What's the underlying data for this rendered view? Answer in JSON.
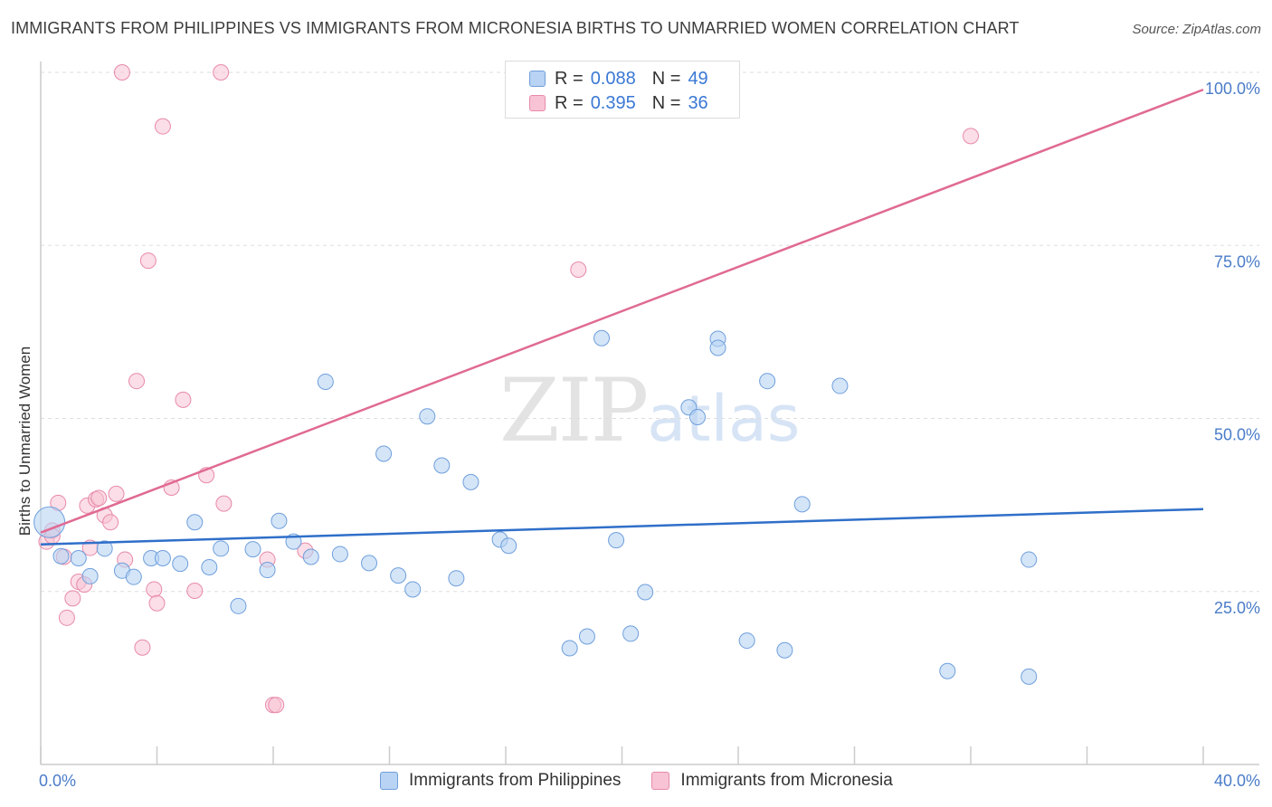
{
  "title": "IMMIGRANTS FROM PHILIPPINES VS IMMIGRANTS FROM MICRONESIA BIRTHS TO UNMARRIED WOMEN CORRELATION CHART",
  "source": "Source: ZipAtlas.com",
  "watermark": {
    "zip": "ZIP",
    "atlas": "atlas"
  },
  "legend": {
    "philippines": {
      "r_label": "R =",
      "r_value": "0.088",
      "n_label": "N =",
      "n_value": "49"
    },
    "micronesia": {
      "r_label": "R =",
      "r_value": "0.395",
      "n_label": "N =",
      "n_value": "36"
    }
  },
  "colors": {
    "philippines_fill": "#b8d3f3",
    "philippines_stroke": "#6f9fdc",
    "philippines_line": "#2f6fc9",
    "micronesia_fill": "#f8c3d4",
    "micronesia_stroke": "#e88aaa",
    "micronesia_line": "#e06a93",
    "grid": "#dddddd",
    "axis": "#cccccc"
  },
  "chart_data": {
    "type": "scatter",
    "title": "IMMIGRANTS FROM PHILIPPINES VS IMMIGRANTS FROM MICRONESIA BIRTHS TO UNMARRIED WOMEN CORRELATION CHART",
    "xlabel": "",
    "ylabel": "Births to Unmarried Women",
    "xlim": [
      0,
      40
    ],
    "ylim": [
      0,
      100
    ],
    "x_tick_labels": [
      "0.0%",
      "40.0%"
    ],
    "y_ticks": [
      25,
      50,
      75,
      100
    ],
    "y_tick_labels": [
      "25.0%",
      "50.0%",
      "75.0%",
      "100.0%"
    ],
    "grid": true,
    "legend_position": "bottom",
    "series": [
      {
        "name": "Immigrants from Philippines",
        "r": 0.088,
        "n": 49,
        "trend": {
          "x": [
            0,
            40
          ],
          "y": [
            31.8,
            36.9
          ]
        },
        "points": [
          {
            "x": 0.3,
            "y": 35.0,
            "size": "large"
          },
          {
            "x": 0.7,
            "y": 30.1
          },
          {
            "x": 1.3,
            "y": 29.8
          },
          {
            "x": 1.7,
            "y": 27.2
          },
          {
            "x": 2.2,
            "y": 31.2
          },
          {
            "x": 2.8,
            "y": 28.0
          },
          {
            "x": 3.2,
            "y": 27.1
          },
          {
            "x": 3.8,
            "y": 29.8
          },
          {
            "x": 4.2,
            "y": 29.8
          },
          {
            "x": 4.8,
            "y": 29.0
          },
          {
            "x": 5.3,
            "y": 35.0
          },
          {
            "x": 5.8,
            "y": 28.5
          },
          {
            "x": 6.2,
            "y": 31.2
          },
          {
            "x": 6.8,
            "y": 22.9
          },
          {
            "x": 7.3,
            "y": 31.1
          },
          {
            "x": 7.8,
            "y": 28.1
          },
          {
            "x": 8.2,
            "y": 35.2
          },
          {
            "x": 8.7,
            "y": 32.2
          },
          {
            "x": 9.3,
            "y": 30.0
          },
          {
            "x": 9.8,
            "y": 55.3
          },
          {
            "x": 10.3,
            "y": 30.4
          },
          {
            "x": 11.3,
            "y": 29.1
          },
          {
            "x": 11.8,
            "y": 44.9
          },
          {
            "x": 12.3,
            "y": 27.3
          },
          {
            "x": 12.8,
            "y": 25.3
          },
          {
            "x": 13.3,
            "y": 50.3
          },
          {
            "x": 13.8,
            "y": 43.2
          },
          {
            "x": 14.3,
            "y": 26.9
          },
          {
            "x": 14.8,
            "y": 40.8
          },
          {
            "x": 15.8,
            "y": 32.5
          },
          {
            "x": 16.1,
            "y": 31.6
          },
          {
            "x": 18.2,
            "y": 16.8
          },
          {
            "x": 18.8,
            "y": 18.5
          },
          {
            "x": 19.3,
            "y": 61.6
          },
          {
            "x": 19.8,
            "y": 32.4
          },
          {
            "x": 20.3,
            "y": 18.9
          },
          {
            "x": 20.8,
            "y": 24.9
          },
          {
            "x": 22.3,
            "y": 51.6
          },
          {
            "x": 22.6,
            "y": 50.2
          },
          {
            "x": 23.3,
            "y": 61.5
          },
          {
            "x": 23.3,
            "y": 60.2
          },
          {
            "x": 24.3,
            "y": 17.9
          },
          {
            "x": 25.0,
            "y": 55.4
          },
          {
            "x": 25.6,
            "y": 16.5
          },
          {
            "x": 26.2,
            "y": 37.6
          },
          {
            "x": 27.5,
            "y": 54.7
          },
          {
            "x": 31.2,
            "y": 13.5
          },
          {
            "x": 34.0,
            "y": 12.7
          },
          {
            "x": 34.0,
            "y": 29.6
          }
        ]
      },
      {
        "name": "Immigrants from Micronesia",
        "r": 0.395,
        "n": 36,
        "trend": {
          "x": [
            0,
            40
          ],
          "y": [
            33.5,
            97.5
          ]
        },
        "points": [
          {
            "x": 0.2,
            "y": 32.2
          },
          {
            "x": 0.4,
            "y": 33.8
          },
          {
            "x": 0.6,
            "y": 37.8
          },
          {
            "x": 0.8,
            "y": 30.0
          },
          {
            "x": 0.9,
            "y": 21.2
          },
          {
            "x": 1.1,
            "y": 24.0
          },
          {
            "x": 1.3,
            "y": 26.4
          },
          {
            "x": 1.5,
            "y": 26.0
          },
          {
            "x": 1.6,
            "y": 37.4
          },
          {
            "x": 1.7,
            "y": 31.3
          },
          {
            "x": 1.9,
            "y": 38.3
          },
          {
            "x": 2.0,
            "y": 38.5
          },
          {
            "x": 2.2,
            "y": 36.0
          },
          {
            "x": 2.4,
            "y": 35.0
          },
          {
            "x": 2.6,
            "y": 39.1
          },
          {
            "x": 2.8,
            "y": 100.0
          },
          {
            "x": 2.9,
            "y": 29.6
          },
          {
            "x": 3.3,
            "y": 55.4
          },
          {
            "x": 3.5,
            "y": 16.9
          },
          {
            "x": 3.7,
            "y": 72.8
          },
          {
            "x": 3.9,
            "y": 25.3
          },
          {
            "x": 4.0,
            "y": 23.3
          },
          {
            "x": 4.2,
            "y": 92.2
          },
          {
            "x": 4.5,
            "y": 40.0
          },
          {
            "x": 4.9,
            "y": 52.7
          },
          {
            "x": 5.3,
            "y": 25.1
          },
          {
            "x": 5.7,
            "y": 41.8
          },
          {
            "x": 6.2,
            "y": 100.0
          },
          {
            "x": 6.3,
            "y": 37.7
          },
          {
            "x": 7.8,
            "y": 29.6
          },
          {
            "x": 8.0,
            "y": 8.6
          },
          {
            "x": 8.1,
            "y": 8.6
          },
          {
            "x": 9.1,
            "y": 30.9
          },
          {
            "x": 18.5,
            "y": 71.5
          },
          {
            "x": 32.0,
            "y": 90.8
          },
          {
            "x": 0.4,
            "y": 33.0
          }
        ]
      }
    ]
  },
  "bottom_legend": {
    "philippines_label": "Immigrants from Philippines",
    "micronesia_label": "Immigrants from Micronesia"
  }
}
